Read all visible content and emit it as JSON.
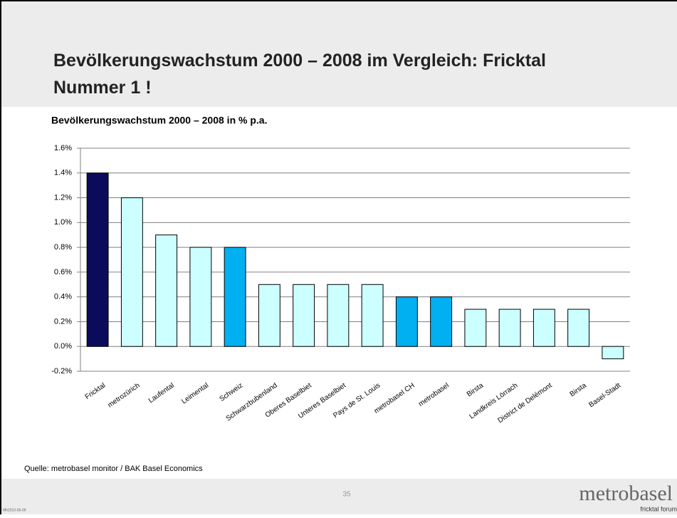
{
  "slide": {
    "title": "Bevölkerungswachstum 2000 – 2008 im Vergleich: Fricktal Nummer 1 !",
    "source": "Quelle: metrobasel monitor / BAK Basel Economics",
    "page": "35",
    "logo": "metrobasel",
    "tagline": "fricktal forum",
    "date": "Mh2010-06-09"
  },
  "chart_data": {
    "type": "bar",
    "title": "Bevölkerungswachstum 2000 – 2008 in % p.a.",
    "categories": [
      "Fricktal",
      "metrozürich",
      "Laufental",
      "Leimental",
      "Schweiz",
      "Schwarzbubenland",
      "Oberes Baselbiet",
      "Unteres Baselbiet",
      "Pays de St. Louis",
      "metrobasel CH",
      "metrobasel",
      "Birsta",
      "Landkreis Lörrach",
      "District de Delémont",
      "Birsta",
      "Basel-Stadt"
    ],
    "values": [
      1.4,
      1.2,
      0.9,
      0.8,
      0.8,
      0.5,
      0.5,
      0.5,
      0.5,
      0.4,
      0.4,
      0.3,
      0.3,
      0.3,
      0.3,
      -0.1
    ],
    "colors": [
      "#0b0b5c",
      "#ccffff",
      "#ccffff",
      "#ccffff",
      "#00b0f0",
      "#ccffff",
      "#ccffff",
      "#ccffff",
      "#ccffff",
      "#00b0f0",
      "#00b0f0",
      "#ccffff",
      "#ccffff",
      "#ccffff",
      "#ccffff",
      "#ccffff"
    ],
    "ylim": [
      -0.2,
      1.6
    ],
    "yticks": [
      {
        "value": -0.2,
        "label": "-0.2%"
      },
      {
        "value": 0,
        "label": "0.0%"
      },
      {
        "value": 0.2,
        "label": "0.2%"
      },
      {
        "value": 0.4,
        "label": "0.4%"
      },
      {
        "value": 0.6,
        "label": "0.6%"
      },
      {
        "value": 0.8,
        "label": "0.8%"
      },
      {
        "value": 1.0,
        "label": "1.0%"
      },
      {
        "value": 1.2,
        "label": "1.2%"
      },
      {
        "value": 1.4,
        "label": "1.4%"
      },
      {
        "value": 1.6,
        "label": "1.6%"
      }
    ],
    "grid": true
  }
}
